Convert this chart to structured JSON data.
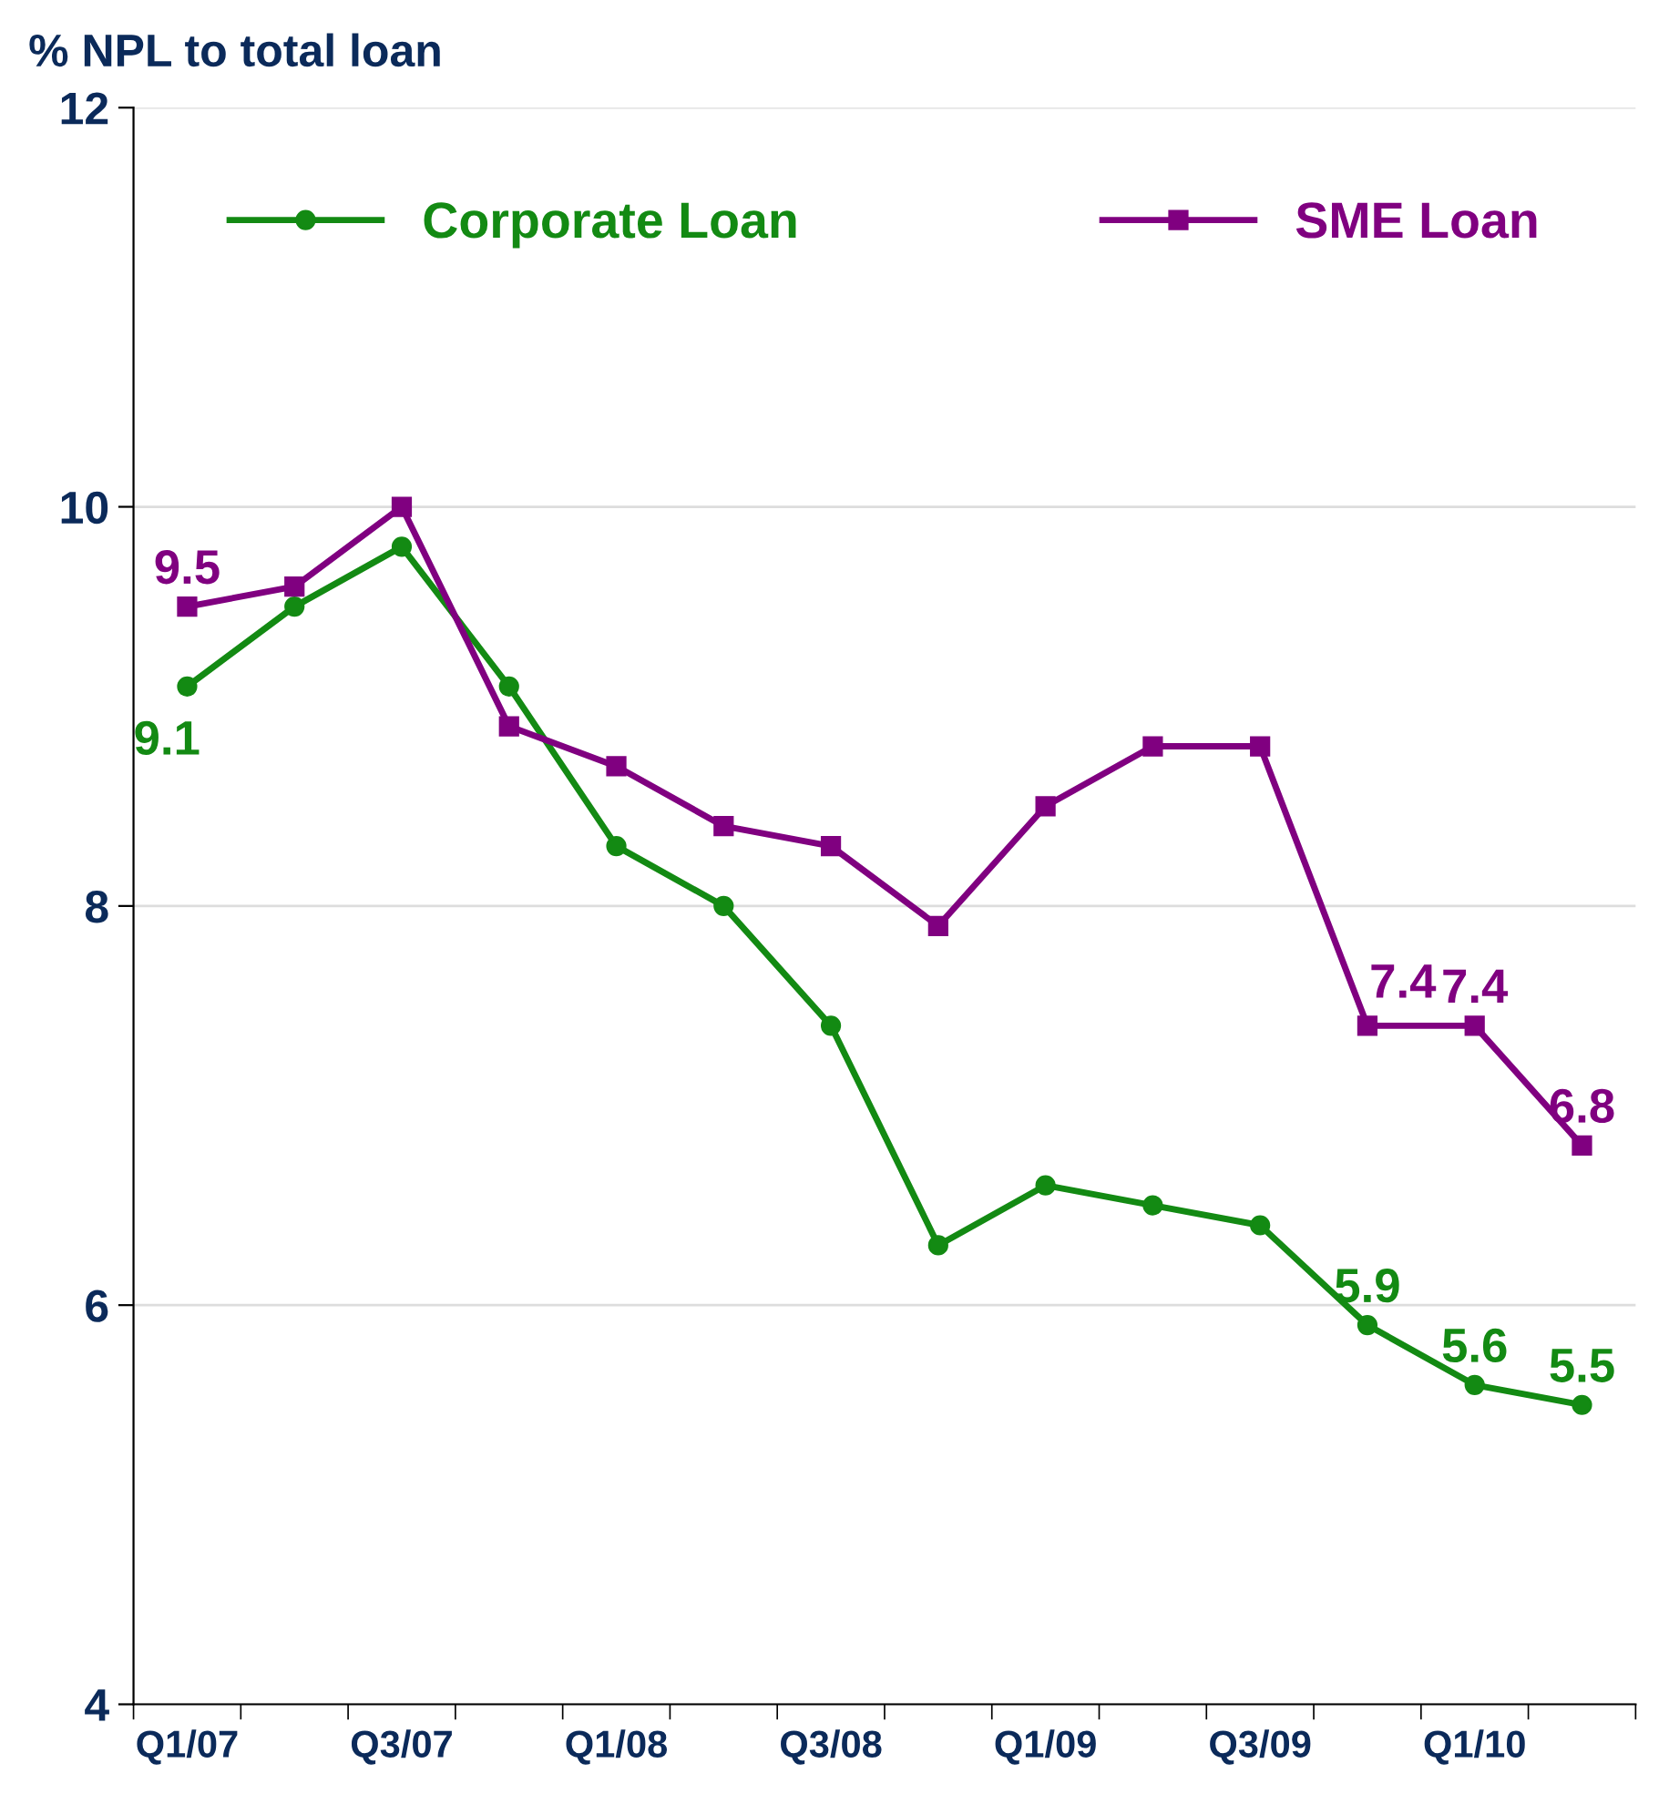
{
  "chart_data": {
    "type": "line",
    "ylabel": "% NPL to total loan",
    "categories": [
      "Q1/07",
      null,
      "Q3/07",
      null,
      "Q1/08",
      null,
      "Q3/08",
      null,
      "Q1/09",
      null,
      "Q3/09",
      null,
      "Q1/10",
      null
    ],
    "series": [
      {
        "name": "Corporate Loan",
        "color": "#138a13",
        "marker": "circle",
        "values": [
          9.1,
          9.5,
          9.8,
          9.1,
          8.3,
          8.0,
          7.4,
          6.3,
          6.6,
          6.5,
          6.4,
          5.9,
          5.6,
          5.5
        ],
        "value_labels": [
          "9.1",
          null,
          null,
          null,
          null,
          null,
          null,
          null,
          null,
          null,
          null,
          "5.9",
          "5.6",
          "5.5"
        ]
      },
      {
        "name": "SME Loan",
        "color": "#800080",
        "marker": "square",
        "values": [
          9.5,
          9.6,
          10.0,
          8.9,
          8.7,
          8.4,
          8.3,
          7.9,
          8.5,
          8.8,
          8.8,
          7.4,
          7.4,
          6.8
        ],
        "value_labels": [
          "9.5",
          null,
          null,
          null,
          null,
          null,
          null,
          null,
          null,
          null,
          null,
          "7.4",
          "7.4",
          "6.8"
        ]
      }
    ],
    "ylim": [
      4,
      12
    ],
    "yticks": [
      4,
      6,
      8,
      10,
      12
    ],
    "grid": "y",
    "legend": "top",
    "line_style": "solid"
  }
}
